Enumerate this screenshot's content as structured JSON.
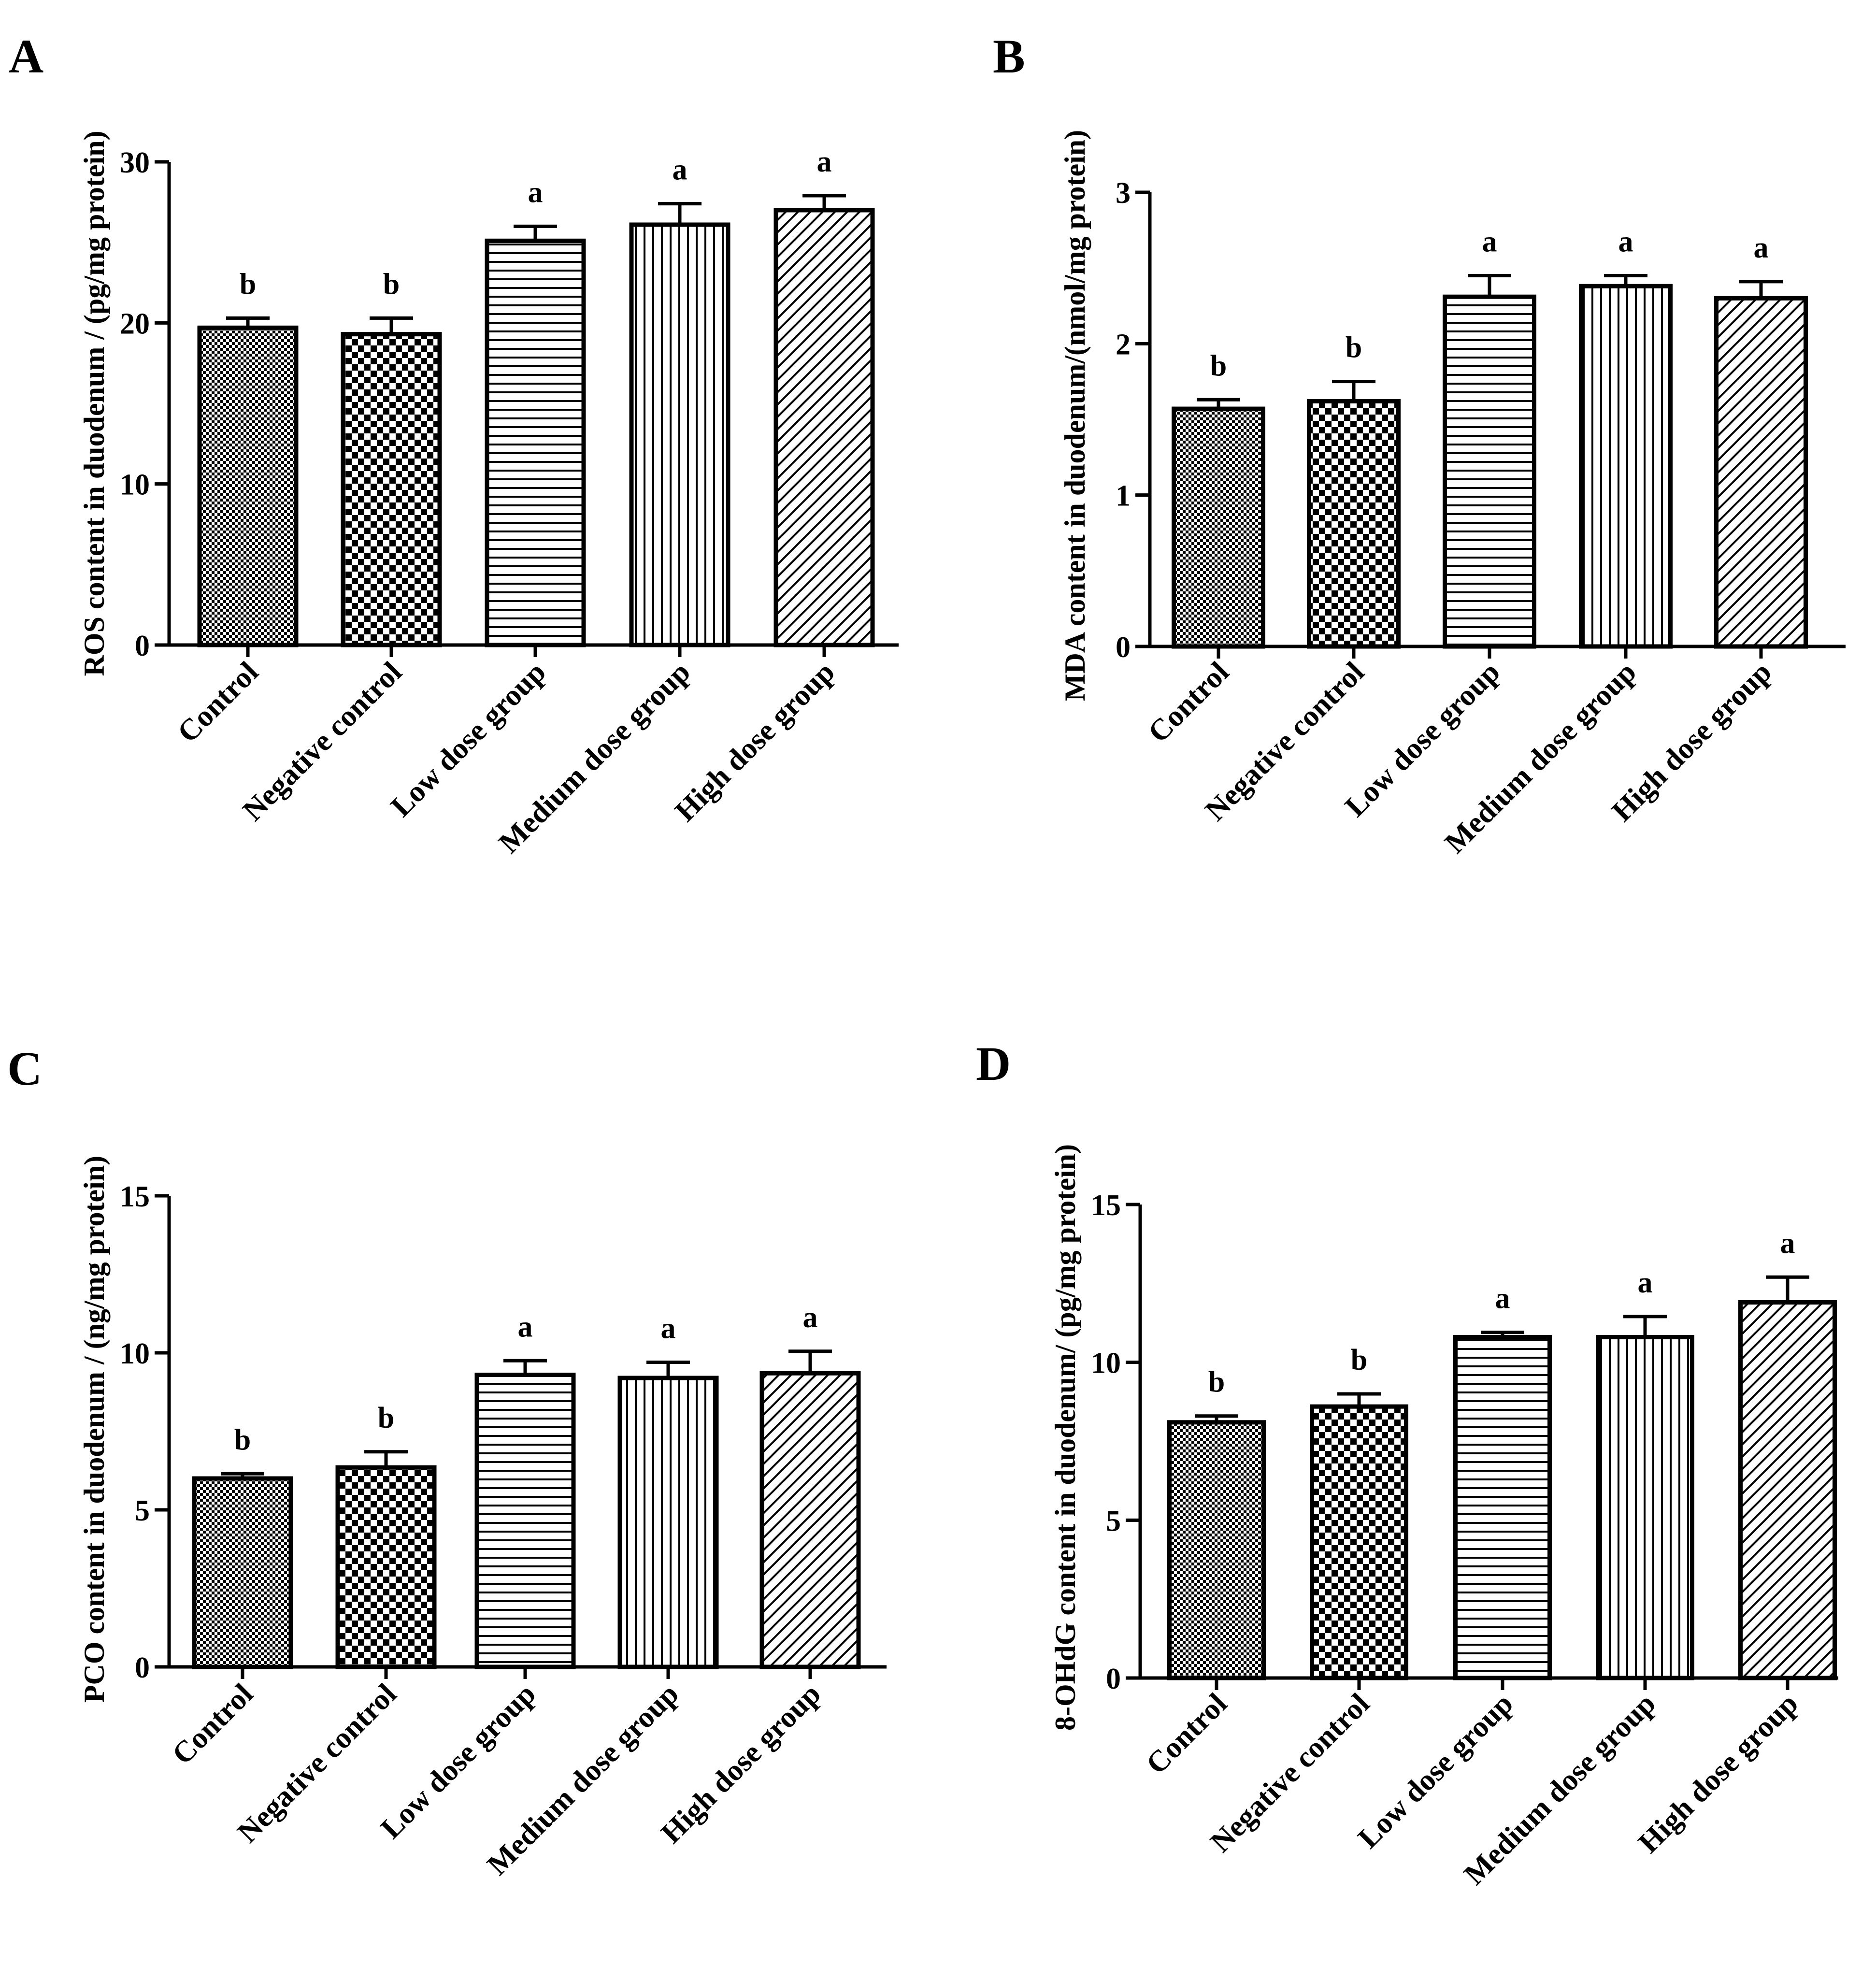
{
  "chart_data": [
    {
      "type": "bar",
      "panel": "A",
      "ylabel": "ROS content in duodenum / (pg/mg protein)",
      "categories": [
        "Control",
        "Negative control",
        "Low dose group",
        "Medium dose group",
        "High dose group"
      ],
      "values": [
        19.7,
        19.3,
        25.1,
        26.1,
        27.0
      ],
      "errors": [
        0.6,
        1.0,
        0.9,
        1.3,
        0.9
      ],
      "significance": [
        "b",
        "b",
        "a",
        "a",
        "a"
      ],
      "ylim": [
        0,
        30
      ],
      "yticks": [
        0,
        10,
        20,
        30
      ],
      "ytick_labels": [
        "0",
        "10",
        "20",
        "30"
      ]
    },
    {
      "type": "bar",
      "panel": "B",
      "ylabel": "MDA  content in duodenum/(nmol/mg protein)",
      "categories": [
        "Control",
        "Negative control",
        "Low dose group",
        "Medium dose group",
        "High dose group"
      ],
      "values": [
        1.57,
        1.62,
        2.31,
        2.38,
        2.3
      ],
      "errors": [
        0.06,
        0.13,
        0.14,
        0.07,
        0.11
      ],
      "significance": [
        "b",
        "b",
        "a",
        "a",
        "a"
      ],
      "ylim": [
        0,
        3
      ],
      "yticks": [
        0,
        1,
        2,
        3
      ],
      "ytick_labels": [
        "0",
        "1",
        "2",
        "3"
      ]
    },
    {
      "type": "bar",
      "panel": "C",
      "ylabel": "PCO  content in duodenum / (ng/mg protein)",
      "categories": [
        "Control",
        "Negative control",
        "Low dose group",
        "Medium dose group",
        "High dose group"
      ],
      "values": [
        6.0,
        6.35,
        9.3,
        9.2,
        9.35
      ],
      "errors": [
        0.15,
        0.5,
        0.45,
        0.5,
        0.7
      ],
      "significance": [
        "b",
        "b",
        "a",
        "a",
        "a"
      ],
      "ylim": [
        0,
        15
      ],
      "yticks": [
        0,
        5,
        10,
        15
      ],
      "ytick_labels": [
        "0",
        "5",
        "10",
        "15"
      ]
    },
    {
      "type": "bar",
      "panel": "D",
      "ylabel": "8-OHdG  content in duodenum/ (pg/mg protein)",
      "categories": [
        "Control",
        "Negative control",
        "Low dose group",
        "Medium dose group",
        "High dose group"
      ],
      "values": [
        8.1,
        8.6,
        10.8,
        10.8,
        11.9
      ],
      "errors": [
        0.2,
        0.4,
        0.15,
        0.65,
        0.8
      ],
      "significance": [
        "b",
        "b",
        "a",
        "a",
        "a"
      ],
      "ylim": [
        0,
        15
      ],
      "yticks": [
        0,
        5,
        10,
        15
      ],
      "ytick_labels": [
        "0",
        "5",
        "10",
        "15"
      ]
    }
  ]
}
